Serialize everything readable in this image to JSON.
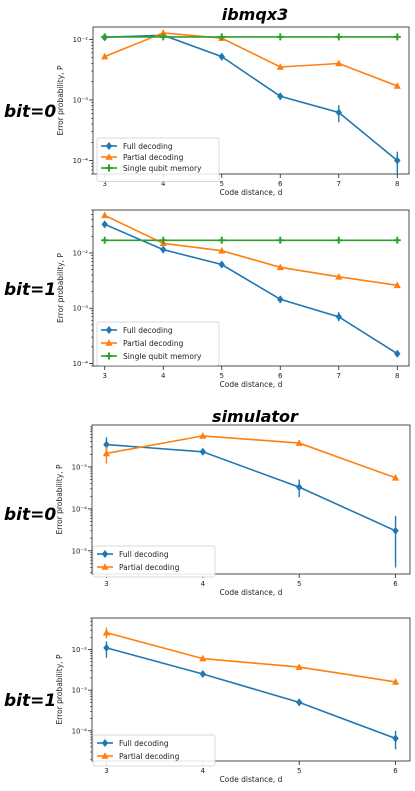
{
  "section_titles": [
    "ibmqx3",
    "simulator"
  ],
  "colors": {
    "full": "#1f77b4",
    "partial": "#ff7f0e",
    "single": "#2ca02c"
  },
  "chart_data": [
    {
      "type": "line",
      "section_title": "ibmqx3",
      "row_label": "bit=0",
      "xlabel": "Code distance, d",
      "ylabel": "Error probability, P",
      "y_scale": "log",
      "ylim": [
        6e-05,
        0.016
      ],
      "xlim": [
        2.8,
        8.2
      ],
      "x_ticks": [
        3,
        4,
        5,
        6,
        7,
        8
      ],
      "y_ticks": [
        0.0001,
        0.001,
        0.01
      ],
      "y_tick_labels": [
        "10⁻⁴",
        "10⁻³",
        "10⁻²"
      ],
      "legend_position": "lower-left",
      "x": [
        3,
        4,
        5,
        6,
        7,
        8
      ],
      "series": [
        {
          "name": "Full decoding",
          "color": "#1f77b4",
          "marker": "diamond",
          "values": [
            0.0108,
            0.0117,
            0.0052,
            0.00115,
            0.00062,
            0.0001
          ],
          "err_low": [
            0.0102,
            0.0107,
            0.0045,
            0.001,
            0.00043,
            6e-05
          ],
          "err_high": [
            0.0114,
            0.0128,
            0.0059,
            0.0013,
            0.00082,
            0.00014
          ]
        },
        {
          "name": "Partial decoding",
          "color": "#ff7f0e",
          "marker": "triangle",
          "values": [
            0.0052,
            0.0128,
            0.0105,
            0.0035,
            0.004,
            0.0017
          ]
        },
        {
          "name": "Single qubit memory",
          "color": "#2ca02c",
          "marker": "plus",
          "values": [
            0.011,
            0.011,
            0.011,
            0.011,
            0.011,
            0.011
          ]
        }
      ]
    },
    {
      "type": "line",
      "row_label": "bit=1",
      "xlabel": "Code distance, d",
      "ylabel": "Error probability, P",
      "y_scale": "log",
      "ylim": [
        9e-05,
        0.06
      ],
      "xlim": [
        2.8,
        8.2
      ],
      "x_ticks": [
        3,
        4,
        5,
        6,
        7,
        8
      ],
      "y_ticks": [
        0.0001,
        0.001,
        0.01
      ],
      "y_tick_labels": [
        "10⁻⁴",
        "10⁻³",
        "10⁻²"
      ],
      "legend_position": "lower-left",
      "x": [
        3,
        4,
        5,
        6,
        7,
        8
      ],
      "series": [
        {
          "name": "Full decoding",
          "color": "#1f77b4",
          "marker": "diamond",
          "values": [
            0.033,
            0.0115,
            0.0062,
            0.00145,
            0.0007,
            0.00015
          ],
          "err_low": [
            0.031,
            0.0108,
            0.0058,
            0.00125,
            0.00058,
            0.00013
          ],
          "err_high": [
            0.035,
            0.0122,
            0.0066,
            0.00165,
            0.00085,
            0.00017
          ]
        },
        {
          "name": "Partial decoding",
          "color": "#ff7f0e",
          "marker": "triangle",
          "values": [
            0.048,
            0.015,
            0.011,
            0.0055,
            0.0037,
            0.0026
          ]
        },
        {
          "name": "Single qubit memory",
          "color": "#2ca02c",
          "marker": "plus",
          "values": [
            0.017,
            0.017,
            0.017,
            0.017,
            0.017,
            0.017
          ]
        }
      ]
    },
    {
      "type": "line",
      "section_title": "simulator",
      "row_label": "bit=0",
      "xlabel": "Code distance, d",
      "ylabel": "Error probability, P",
      "y_scale": "log",
      "ylim": [
        2.8e-06,
        0.01
      ],
      "xlim": [
        2.85,
        6.15
      ],
      "x_ticks": [
        3,
        4,
        5,
        6
      ],
      "y_ticks": [
        1e-05,
        0.0001,
        0.001
      ],
      "y_tick_labels": [
        "10⁻⁵",
        "10⁻⁴",
        "10⁻³"
      ],
      "legend_position": "lower-left",
      "x": [
        3,
        4,
        5,
        6
      ],
      "series": [
        {
          "name": "Full decoding",
          "color": "#1f77b4",
          "marker": "diamond",
          "values": [
            0.0034,
            0.0023,
            0.00033,
            3e-05
          ],
          "err_low": [
            0.0021,
            0.002,
            0.00019,
            4e-06
          ],
          "err_high": [
            0.0051,
            0.0026,
            0.0005,
            6.8e-05
          ]
        },
        {
          "name": "Partial decoding",
          "color": "#ff7f0e",
          "marker": "triangle",
          "values": [
            0.0021,
            0.0055,
            0.0037,
            0.00055
          ],
          "err_low": [
            0.0012,
            0.0055,
            0.0037,
            0.00055
          ],
          "err_high": [
            0.0031,
            0.0055,
            0.0037,
            0.00055
          ]
        }
      ]
    },
    {
      "type": "line",
      "row_label": "bit=1",
      "xlabel": "Code distance, d",
      "ylabel": "Error probability, P",
      "y_scale": "log",
      "ylim": [
        1.8e-05,
        0.06
      ],
      "xlim": [
        2.85,
        6.15
      ],
      "x_ticks": [
        3,
        4,
        5,
        6
      ],
      "y_ticks": [
        0.0001,
        0.001,
        0.01
      ],
      "y_tick_labels": [
        "10⁻⁴",
        "10⁻³",
        "10⁻²"
      ],
      "legend_position": "lower-left",
      "x": [
        3,
        4,
        5,
        6
      ],
      "series": [
        {
          "name": "Full decoding",
          "color": "#1f77b4",
          "marker": "diamond",
          "values": [
            0.011,
            0.0025,
            0.0005,
            6.5e-05
          ],
          "err_low": [
            0.0063,
            0.0025,
            0.0005,
            3.5e-05
          ],
          "err_high": [
            0.016,
            0.0025,
            0.0005,
            0.0001
          ]
        },
        {
          "name": "Partial decoding",
          "color": "#ff7f0e",
          "marker": "triangle",
          "values": [
            0.026,
            0.006,
            0.0037,
            0.0016
          ],
          "err_low": [
            0.019,
            0.006,
            0.0037,
            0.0016
          ],
          "err_high": [
            0.035,
            0.006,
            0.0037,
            0.0016
          ]
        }
      ]
    }
  ]
}
